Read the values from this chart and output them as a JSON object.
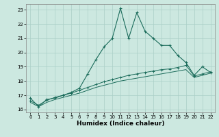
{
  "xlabel": "Humidex (Indice chaleur)",
  "x": [
    0,
    1,
    2,
    3,
    4,
    5,
    6,
    7,
    8,
    9,
    10,
    11,
    12,
    13,
    14,
    15,
    16,
    17,
    18,
    19,
    20,
    21,
    22
  ],
  "line1_y": [
    16.8,
    16.2,
    16.7,
    16.8,
    17.0,
    17.2,
    17.5,
    18.5,
    19.5,
    20.4,
    21.0,
    23.1,
    21.0,
    22.8,
    21.5,
    21.0,
    20.5,
    20.5,
    19.8,
    19.3,
    18.4,
    19.0,
    18.6
  ],
  "line2_y": [
    16.6,
    16.3,
    16.65,
    16.85,
    17.0,
    17.15,
    17.35,
    17.55,
    17.75,
    17.95,
    18.1,
    18.25,
    18.4,
    18.5,
    18.6,
    18.7,
    18.8,
    18.85,
    18.95,
    19.1,
    18.35,
    18.5,
    18.65
  ],
  "line3_y": [
    16.5,
    16.2,
    16.5,
    16.7,
    16.85,
    17.0,
    17.15,
    17.35,
    17.55,
    17.7,
    17.85,
    18.0,
    18.1,
    18.2,
    18.3,
    18.4,
    18.5,
    18.6,
    18.7,
    18.8,
    18.25,
    18.4,
    18.55
  ],
  "line_color": "#1a6b5a",
  "bg_color": "#cce8e0",
  "grid_color": "#aacfc7",
  "ylim": [
    15.8,
    23.4
  ],
  "xlim": [
    -0.5,
    22.5
  ],
  "yticks": [
    16,
    17,
    18,
    19,
    20,
    21,
    22,
    23
  ],
  "xticks": [
    0,
    1,
    2,
    3,
    4,
    5,
    6,
    7,
    8,
    9,
    10,
    11,
    12,
    13,
    14,
    15,
    16,
    17,
    18,
    19,
    20,
    21,
    22
  ]
}
